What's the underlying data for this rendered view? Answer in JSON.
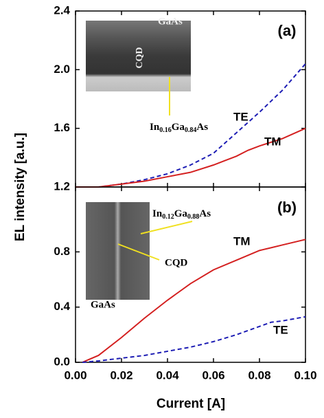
{
  "chart_data": [
    {
      "type": "line",
      "panel_label": "(a)",
      "ylabel": "EL intensity [a.u.]",
      "xlim": [
        0,
        0.1
      ],
      "xticks": [
        0,
        0.02,
        0.04,
        0.06,
        0.08,
        0.1
      ],
      "ylim": [
        1.2,
        2.4
      ],
      "yticks": [
        {
          "value": 1.2,
          "label": "1.2"
        },
        {
          "value": 1.6,
          "label": "1.6"
        },
        {
          "value": 2,
          "label": "2.0"
        },
        {
          "value": 2.4,
          "label": "2.4"
        }
      ],
      "x": [
        0,
        0.01,
        0.02,
        0.03,
        0.04,
        0.05,
        0.06,
        0.065,
        0.07,
        0.075,
        0.08,
        0.09,
        0.1
      ],
      "series": [
        {
          "name": "TE",
          "color": "#1c1cb4",
          "dash": true,
          "values": [
            1.2,
            1.2,
            1.22,
            1.25,
            1.29,
            1.35,
            1.43,
            1.5,
            1.57,
            1.64,
            1.71,
            1.86,
            2.04
          ]
        },
        {
          "name": "TM",
          "color": "#d42020",
          "dash": false,
          "values": [
            1.2,
            1.2,
            1.22,
            1.24,
            1.27,
            1.3,
            1.35,
            1.38,
            1.41,
            1.45,
            1.48,
            1.53,
            1.6
          ]
        }
      ],
      "annotations": {
        "top": "GaAs",
        "dot": "CQD",
        "layer": [
          "In",
          "0.16",
          "Ga",
          "0.84",
          "As"
        ]
      }
    },
    {
      "type": "line",
      "panel_label": "(b)",
      "xlabel": "Current [A]",
      "xlim": [
        0,
        0.1
      ],
      "xticks": [
        {
          "value": 0,
          "label": "0.00"
        },
        {
          "value": 0.02,
          "label": "0.02"
        },
        {
          "value": 0.04,
          "label": "0.04"
        },
        {
          "value": 0.06,
          "label": "0.06"
        },
        {
          "value": 0.08,
          "label": "0.08"
        },
        {
          "value": 0.1,
          "label": "0.10"
        }
      ],
      "ylim": [
        0,
        1.27
      ],
      "yticks": [
        {
          "value": 0,
          "label": "0.0"
        },
        0.4,
        0.8
      ],
      "x": [
        0.003,
        0.01,
        0.02,
        0.03,
        0.04,
        0.05,
        0.06,
        0.07,
        0.08,
        0.085,
        0.09,
        0.1
      ],
      "series": [
        {
          "name": "TM",
          "color": "#d42020",
          "dash": false,
          "values": [
            0,
            0.05,
            0.18,
            0.32,
            0.45,
            0.57,
            0.67,
            0.74,
            0.81,
            0.83,
            0.85,
            0.89
          ]
        },
        {
          "name": "TE",
          "color": "#1c1cb4",
          "dash": true,
          "values": [
            0,
            0.01,
            0.03,
            0.05,
            0.08,
            0.11,
            0.15,
            0.2,
            0.26,
            0.29,
            0.3,
            0.33
          ]
        }
      ],
      "annotations": {
        "layer": [
          "In",
          "0.12",
          "Ga",
          "0.88",
          "As"
        ],
        "dot": "CQD",
        "bottom": "GaAs"
      }
    }
  ]
}
